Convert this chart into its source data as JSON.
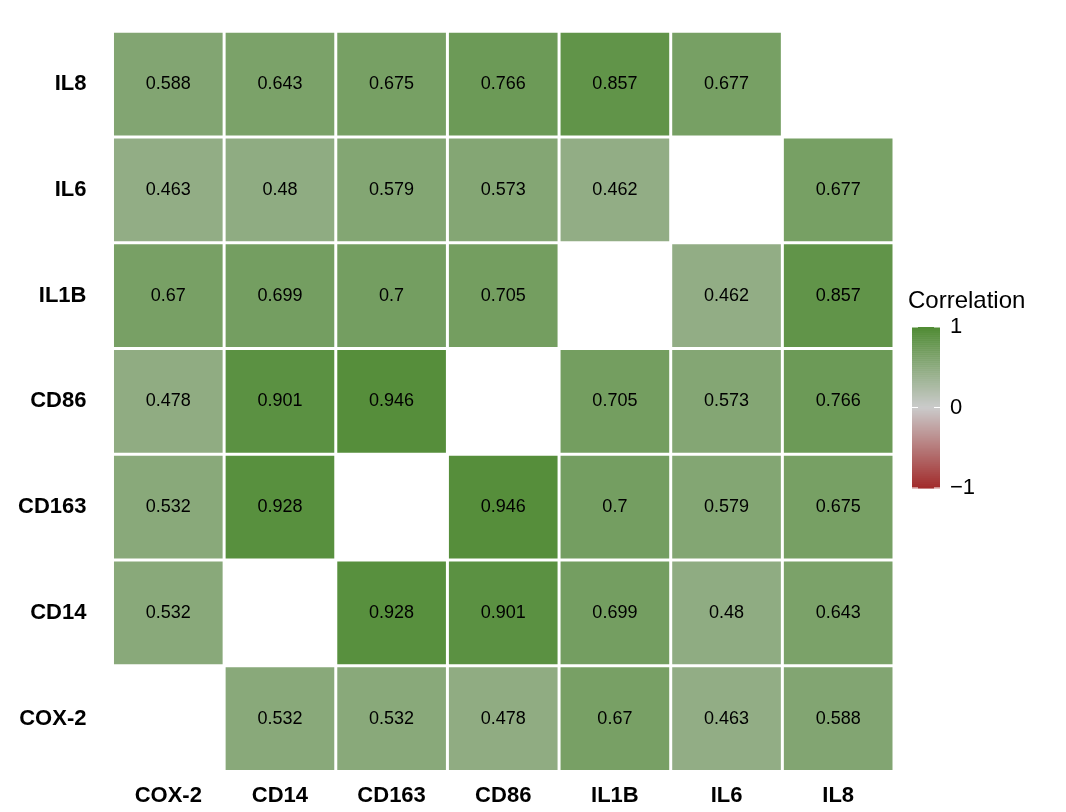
{
  "chart_data": {
    "type": "heatmap",
    "clabel": "Correlation",
    "categories": [
      "COX-2",
      "CD14",
      "CD163",
      "CD86",
      "IL1B",
      "IL6",
      "IL8"
    ],
    "y_categories": [
      "IL8",
      "IL6",
      "IL1B",
      "CD86",
      "CD163",
      "CD14",
      "COX-2"
    ],
    "cells": [
      [
        0.588,
        0.643,
        0.675,
        0.766,
        0.857,
        0.677,
        null
      ],
      [
        0.463,
        0.48,
        0.579,
        0.573,
        0.462,
        null,
        0.677
      ],
      [
        0.67,
        0.699,
        0.7,
        0.705,
        null,
        0.462,
        0.857
      ],
      [
        0.478,
        0.901,
        0.946,
        null,
        0.705,
        0.573,
        0.766
      ],
      [
        0.532,
        0.928,
        null,
        0.946,
        0.7,
        0.579,
        0.675
      ],
      [
        0.532,
        null,
        0.928,
        0.901,
        0.699,
        0.48,
        0.643
      ],
      [
        null,
        0.532,
        0.532,
        0.478,
        0.67,
        0.463,
        0.588
      ]
    ],
    "data_labels": true,
    "colors": [
      "#a12b2b",
      "#cbcbcb",
      "#4f8b33"
    ],
    "clim": [
      -1,
      1
    ],
    "cticks": [
      {
        "value": -1,
        "label": "−1"
      },
      0,
      1
    ]
  }
}
